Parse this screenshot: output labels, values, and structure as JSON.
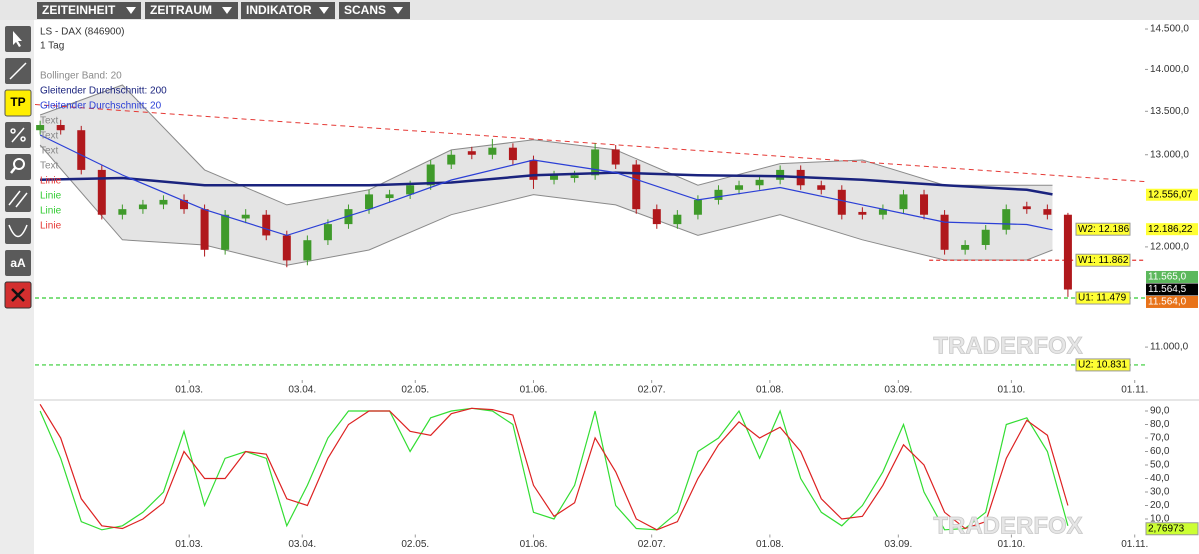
{
  "menu": [
    "ZEITEINHEIT",
    "ZEITRAUM",
    "INDIKATOR",
    "SCANS"
  ],
  "tool_labels": [
    "TP",
    "aA"
  ],
  "chart_data": [
    {
      "type": "candlestick",
      "title": "LS - DAX (846900)",
      "subtitle": "1 Tag",
      "log_scale": true,
      "up_color": "#3f9a2a",
      "down_color": "#b0181c",
      "x": [
        -3,
        1,
        5,
        9,
        13,
        17,
        21,
        25,
        29,
        33,
        37,
        41,
        45,
        49,
        53,
        57,
        61,
        65,
        69,
        73,
        77,
        81,
        85,
        89,
        93,
        97,
        101,
        105,
        109,
        113,
        117,
        121,
        125,
        129,
        133,
        137,
        141,
        145,
        149,
        153,
        157,
        161,
        165,
        169,
        173,
        177,
        181,
        185,
        189,
        193,
        197
      ],
      "ohlc": [
        [
          13280,
          13390,
          13230,
          13340
        ],
        [
          13340,
          13400,
          13230,
          13280
        ],
        [
          13280,
          13330,
          12780,
          12830
        ],
        [
          12830,
          12880,
          12290,
          12340
        ],
        [
          12340,
          12450,
          12290,
          12400
        ],
        [
          12400,
          12500,
          12350,
          12450
        ],
        [
          12450,
          12550,
          12400,
          12500
        ],
        [
          12500,
          12560,
          12350,
          12400
        ],
        [
          12400,
          12450,
          11900,
          11970
        ],
        [
          11970,
          12390,
          11920,
          12340
        ],
        [
          12300,
          12400,
          12250,
          12340
        ],
        [
          12340,
          12390,
          12070,
          12120
        ],
        [
          12120,
          12170,
          11790,
          11860
        ],
        [
          11860,
          12120,
          11810,
          12070
        ],
        [
          12070,
          12290,
          12020,
          12240
        ],
        [
          12240,
          12450,
          12190,
          12400
        ],
        [
          12400,
          12610,
          12350,
          12560
        ],
        [
          12520,
          12610,
          12470,
          12560
        ],
        [
          12560,
          12710,
          12510,
          12660
        ],
        [
          12660,
          12940,
          12610,
          12890
        ],
        [
          12890,
          13050,
          12840,
          13000
        ],
        [
          13040,
          13090,
          12950,
          13000
        ],
        [
          13000,
          13180,
          12950,
          13080
        ],
        [
          13080,
          13130,
          12890,
          12940
        ],
        [
          12940,
          12990,
          12620,
          12720
        ],
        [
          12720,
          12820,
          12670,
          12770
        ],
        [
          12740,
          12820,
          12690,
          12770
        ],
        [
          12770,
          13130,
          12720,
          13060
        ],
        [
          13060,
          13110,
          12840,
          12890
        ],
        [
          12890,
          12940,
          12350,
          12400
        ],
        [
          12400,
          12450,
          12190,
          12240
        ],
        [
          12240,
          12390,
          12190,
          12340
        ],
        [
          12340,
          12550,
          12290,
          12500
        ],
        [
          12500,
          12660,
          12450,
          12610
        ],
        [
          12610,
          12710,
          12560,
          12660
        ],
        [
          12660,
          12770,
          12610,
          12720
        ],
        [
          12720,
          12880,
          12670,
          12830
        ],
        [
          12830,
          12880,
          12610,
          12660
        ],
        [
          12660,
          12710,
          12560,
          12610
        ],
        [
          12610,
          12660,
          12290,
          12340
        ],
        [
          12370,
          12420,
          12290,
          12340
        ],
        [
          12340,
          12450,
          12290,
          12400
        ],
        [
          12400,
          12610,
          12350,
          12560
        ],
        [
          12560,
          12610,
          12290,
          12340
        ],
        [
          12340,
          12390,
          11920,
          11970
        ],
        [
          11970,
          12070,
          11920,
          12020
        ],
        [
          12020,
          12230,
          11970,
          12180
        ],
        [
          12180,
          12450,
          12130,
          12400
        ],
        [
          12430,
          12480,
          12350,
          12400
        ],
        [
          12400,
          12450,
          12290,
          12340
        ],
        [
          12340,
          12360,
          11490,
          11564
        ]
      ],
      "xlim": [
        -4,
        212
      ],
      "xticks": [
        {
          "value": 26,
          "label": "01.03."
        },
        {
          "value": 48,
          "label": "03.04."
        },
        {
          "value": 70,
          "label": "02.05."
        },
        {
          "value": 93,
          "label": "01.06."
        },
        {
          "value": 116,
          "label": "02.07."
        },
        {
          "value": 139,
          "label": "01.08."
        },
        {
          "value": 164,
          "label": "03.09."
        },
        {
          "value": 186,
          "label": "01.10."
        },
        {
          "value": 210,
          "label": "01.11."
        }
      ],
      "ylim": [
        10690,
        14614
      ],
      "yticks": [
        {
          "value": 11000,
          "label": "11.000,0"
        },
        {
          "value": 12000,
          "label": "12.000,0"
        },
        {
          "value": 13000,
          "label": "13.000,0"
        },
        {
          "value": 13500,
          "label": "13.500,0"
        },
        {
          "value": 14000,
          "label": "14.000,0"
        },
        {
          "value": 14500,
          "label": "14.500,0"
        }
      ],
      "indicators": [
        {
          "name": "Bollinger Band: 20",
          "color": "#8a8a8a",
          "x": [
            -3,
            13,
            29,
            45,
            61,
            77,
            93,
            109,
            125,
            141,
            157,
            173,
            189,
            194
          ],
          "upper": [
            13457,
            13812,
            12830,
            12446,
            12610,
            13055,
            13170,
            13055,
            12661,
            12900,
            12941,
            12661,
            12661,
            12661
          ],
          "lower": [
            13110,
            12074,
            12020,
            11810,
            11968,
            12340,
            12558,
            12446,
            12120,
            12340,
            12074,
            11864,
            11864,
            11968
          ]
        },
        {
          "name": "Gleitender Durchschnitt: 200",
          "color": "#1a237e",
          "x": [
            -3,
            13,
            29,
            45,
            61,
            77,
            93,
            109,
            125,
            141,
            157,
            173,
            189,
            194
          ],
          "values": [
            12720,
            12740,
            12660,
            12660,
            12660,
            12690,
            12770,
            12800,
            12770,
            12760,
            12720,
            12660,
            12610,
            12560
          ]
        },
        {
          "name": "Gleitender Durchschnitt: 20",
          "color": "#2b3fd6",
          "x": [
            -3,
            13,
            29,
            45,
            61,
            77,
            93,
            109,
            125,
            141,
            157,
            173,
            189,
            194
          ],
          "values": [
            13225,
            12773,
            12395,
            12120,
            12395,
            12718,
            12941,
            12800,
            12500,
            12635,
            12446,
            12261,
            12236,
            12180
          ]
        }
      ],
      "annotations": [
        {
          "text": "Text",
          "color": "#888888"
        },
        {
          "text": "Text",
          "color": "#888888"
        },
        {
          "text": "Text",
          "color": "#888888"
        },
        {
          "text": "Text",
          "color": "#888888"
        },
        {
          "text": "Linie",
          "color": "#e53935"
        },
        {
          "text": "Linie",
          "color": "#33cc33"
        },
        {
          "text": "Linie",
          "color": "#33cc33"
        },
        {
          "text": "Linie",
          "color": "#e53935"
        }
      ],
      "trendline": {
        "color": "#e53935",
        "x": [
          -4,
          212
        ],
        "values": [
          13580,
          12700
        ]
      },
      "levels": [
        {
          "label": "W2: 12.186",
          "value": 12186
        },
        {
          "label": "W1: 11.862",
          "value": 11862,
          "line_color": "#e53935",
          "line_start": 170
        },
        {
          "label": "U1: 11.479",
          "value": 11479,
          "line_color": "#33cc33"
        },
        {
          "label": "U2: 10.831",
          "value": 10831,
          "line_color": "#33cc33"
        }
      ],
      "price_labels": [
        {
          "value": 12556.07,
          "label": "12.556,07",
          "color": "#ffff33",
          "text_color": "#000000"
        },
        {
          "value": 12186.22,
          "label": "12.186,22",
          "color": "#ffff33",
          "text_color": "#000000"
        },
        {
          "value": 11565.0,
          "label": "11.565,0",
          "color": "#5cb85c",
          "text_color": "#ffffff"
        },
        {
          "value": 11564.5,
          "label": "11.564,5",
          "color": "#000000",
          "text_color": "#ffffff"
        },
        {
          "value": 11564.0,
          "label": "11.564,0",
          "color": "#e8731a",
          "text_color": "#ffffff"
        }
      ],
      "watermark": "TRADERFOX"
    },
    {
      "type": "stochastic",
      "ylim": [
        0,
        95
      ],
      "yticks": [
        {
          "value": 10,
          "label": "10,0"
        },
        {
          "value": 20,
          "label": "20,0"
        },
        {
          "value": 30,
          "label": "30,0"
        },
        {
          "value": 40,
          "label": "40,0"
        },
        {
          "value": 50,
          "label": "50,0"
        },
        {
          "value": 60,
          "label": "60,0"
        },
        {
          "value": 70,
          "label": "70,0"
        },
        {
          "value": 80,
          "label": "80,0"
        },
        {
          "value": 90,
          "label": "90,0"
        }
      ],
      "series": [
        {
          "color": "#33dd33",
          "values": [
            90,
            55,
            8,
            2,
            5,
            15,
            30,
            75,
            20,
            55,
            60,
            55,
            5,
            35,
            70,
            90,
            90,
            90,
            60,
            85,
            90,
            92,
            90,
            80,
            15,
            10,
            35,
            90,
            20,
            3,
            2,
            15,
            60,
            70,
            90,
            55,
            90,
            40,
            15,
            5,
            20,
            45,
            80,
            30,
            2,
            3,
            15,
            80,
            85,
            60,
            5
          ]
        },
        {
          "color": "#dd2222",
          "values": [
            95,
            70,
            25,
            5,
            3,
            10,
            22,
            60,
            40,
            40,
            60,
            58,
            25,
            20,
            55,
            80,
            90,
            90,
            75,
            72,
            88,
            92,
            91,
            87,
            35,
            12,
            22,
            70,
            45,
            10,
            2,
            8,
            40,
            65,
            82,
            70,
            78,
            60,
            25,
            10,
            12,
            35,
            65,
            50,
            15,
            3,
            8,
            55,
            83,
            72,
            20
          ]
        }
      ],
      "last_label": {
        "value": 2.76973,
        "label": "2,76973",
        "color": "#ccff33"
      }
    }
  ]
}
